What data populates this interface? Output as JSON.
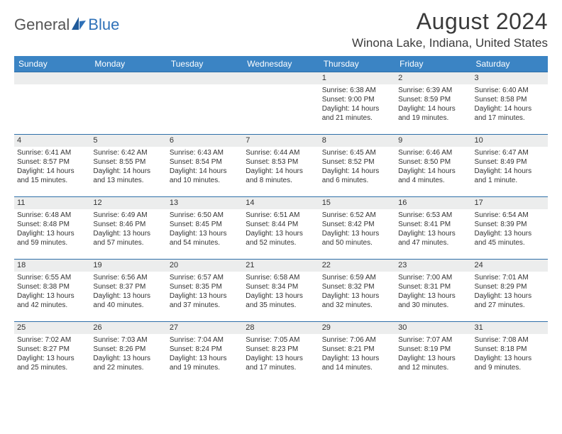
{
  "logo": {
    "general": "General",
    "blue": "Blue"
  },
  "title": "August 2024",
  "location": "Winona Lake, Indiana, United States",
  "headers": [
    "Sunday",
    "Monday",
    "Tuesday",
    "Wednesday",
    "Thursday",
    "Friday",
    "Saturday"
  ],
  "colors": {
    "header_bg": "#3b84c4",
    "daynum_bg": "#eceded",
    "rule": "#2f6fa8",
    "text": "#333333",
    "logo_blue": "#2f71b8"
  },
  "weeks": [
    [
      {
        "n": "",
        "sr": "",
        "ss": "",
        "dl1": "",
        "dl2": ""
      },
      {
        "n": "",
        "sr": "",
        "ss": "",
        "dl1": "",
        "dl2": ""
      },
      {
        "n": "",
        "sr": "",
        "ss": "",
        "dl1": "",
        "dl2": ""
      },
      {
        "n": "",
        "sr": "",
        "ss": "",
        "dl1": "",
        "dl2": ""
      },
      {
        "n": "1",
        "sr": "Sunrise: 6:38 AM",
        "ss": "Sunset: 9:00 PM",
        "dl1": "Daylight: 14 hours",
        "dl2": "and 21 minutes."
      },
      {
        "n": "2",
        "sr": "Sunrise: 6:39 AM",
        "ss": "Sunset: 8:59 PM",
        "dl1": "Daylight: 14 hours",
        "dl2": "and 19 minutes."
      },
      {
        "n": "3",
        "sr": "Sunrise: 6:40 AM",
        "ss": "Sunset: 8:58 PM",
        "dl1": "Daylight: 14 hours",
        "dl2": "and 17 minutes."
      }
    ],
    [
      {
        "n": "4",
        "sr": "Sunrise: 6:41 AM",
        "ss": "Sunset: 8:57 PM",
        "dl1": "Daylight: 14 hours",
        "dl2": "and 15 minutes."
      },
      {
        "n": "5",
        "sr": "Sunrise: 6:42 AM",
        "ss": "Sunset: 8:55 PM",
        "dl1": "Daylight: 14 hours",
        "dl2": "and 13 minutes."
      },
      {
        "n": "6",
        "sr": "Sunrise: 6:43 AM",
        "ss": "Sunset: 8:54 PM",
        "dl1": "Daylight: 14 hours",
        "dl2": "and 10 minutes."
      },
      {
        "n": "7",
        "sr": "Sunrise: 6:44 AM",
        "ss": "Sunset: 8:53 PM",
        "dl1": "Daylight: 14 hours",
        "dl2": "and 8 minutes."
      },
      {
        "n": "8",
        "sr": "Sunrise: 6:45 AM",
        "ss": "Sunset: 8:52 PM",
        "dl1": "Daylight: 14 hours",
        "dl2": "and 6 minutes."
      },
      {
        "n": "9",
        "sr": "Sunrise: 6:46 AM",
        "ss": "Sunset: 8:50 PM",
        "dl1": "Daylight: 14 hours",
        "dl2": "and 4 minutes."
      },
      {
        "n": "10",
        "sr": "Sunrise: 6:47 AM",
        "ss": "Sunset: 8:49 PM",
        "dl1": "Daylight: 14 hours",
        "dl2": "and 1 minute."
      }
    ],
    [
      {
        "n": "11",
        "sr": "Sunrise: 6:48 AM",
        "ss": "Sunset: 8:48 PM",
        "dl1": "Daylight: 13 hours",
        "dl2": "and 59 minutes."
      },
      {
        "n": "12",
        "sr": "Sunrise: 6:49 AM",
        "ss": "Sunset: 8:46 PM",
        "dl1": "Daylight: 13 hours",
        "dl2": "and 57 minutes."
      },
      {
        "n": "13",
        "sr": "Sunrise: 6:50 AM",
        "ss": "Sunset: 8:45 PM",
        "dl1": "Daylight: 13 hours",
        "dl2": "and 54 minutes."
      },
      {
        "n": "14",
        "sr": "Sunrise: 6:51 AM",
        "ss": "Sunset: 8:44 PM",
        "dl1": "Daylight: 13 hours",
        "dl2": "and 52 minutes."
      },
      {
        "n": "15",
        "sr": "Sunrise: 6:52 AM",
        "ss": "Sunset: 8:42 PM",
        "dl1": "Daylight: 13 hours",
        "dl2": "and 50 minutes."
      },
      {
        "n": "16",
        "sr": "Sunrise: 6:53 AM",
        "ss": "Sunset: 8:41 PM",
        "dl1": "Daylight: 13 hours",
        "dl2": "and 47 minutes."
      },
      {
        "n": "17",
        "sr": "Sunrise: 6:54 AM",
        "ss": "Sunset: 8:39 PM",
        "dl1": "Daylight: 13 hours",
        "dl2": "and 45 minutes."
      }
    ],
    [
      {
        "n": "18",
        "sr": "Sunrise: 6:55 AM",
        "ss": "Sunset: 8:38 PM",
        "dl1": "Daylight: 13 hours",
        "dl2": "and 42 minutes."
      },
      {
        "n": "19",
        "sr": "Sunrise: 6:56 AM",
        "ss": "Sunset: 8:37 PM",
        "dl1": "Daylight: 13 hours",
        "dl2": "and 40 minutes."
      },
      {
        "n": "20",
        "sr": "Sunrise: 6:57 AM",
        "ss": "Sunset: 8:35 PM",
        "dl1": "Daylight: 13 hours",
        "dl2": "and 37 minutes."
      },
      {
        "n": "21",
        "sr": "Sunrise: 6:58 AM",
        "ss": "Sunset: 8:34 PM",
        "dl1": "Daylight: 13 hours",
        "dl2": "and 35 minutes."
      },
      {
        "n": "22",
        "sr": "Sunrise: 6:59 AM",
        "ss": "Sunset: 8:32 PM",
        "dl1": "Daylight: 13 hours",
        "dl2": "and 32 minutes."
      },
      {
        "n": "23",
        "sr": "Sunrise: 7:00 AM",
        "ss": "Sunset: 8:31 PM",
        "dl1": "Daylight: 13 hours",
        "dl2": "and 30 minutes."
      },
      {
        "n": "24",
        "sr": "Sunrise: 7:01 AM",
        "ss": "Sunset: 8:29 PM",
        "dl1": "Daylight: 13 hours",
        "dl2": "and 27 minutes."
      }
    ],
    [
      {
        "n": "25",
        "sr": "Sunrise: 7:02 AM",
        "ss": "Sunset: 8:27 PM",
        "dl1": "Daylight: 13 hours",
        "dl2": "and 25 minutes."
      },
      {
        "n": "26",
        "sr": "Sunrise: 7:03 AM",
        "ss": "Sunset: 8:26 PM",
        "dl1": "Daylight: 13 hours",
        "dl2": "and 22 minutes."
      },
      {
        "n": "27",
        "sr": "Sunrise: 7:04 AM",
        "ss": "Sunset: 8:24 PM",
        "dl1": "Daylight: 13 hours",
        "dl2": "and 19 minutes."
      },
      {
        "n": "28",
        "sr": "Sunrise: 7:05 AM",
        "ss": "Sunset: 8:23 PM",
        "dl1": "Daylight: 13 hours",
        "dl2": "and 17 minutes."
      },
      {
        "n": "29",
        "sr": "Sunrise: 7:06 AM",
        "ss": "Sunset: 8:21 PM",
        "dl1": "Daylight: 13 hours",
        "dl2": "and 14 minutes."
      },
      {
        "n": "30",
        "sr": "Sunrise: 7:07 AM",
        "ss": "Sunset: 8:19 PM",
        "dl1": "Daylight: 13 hours",
        "dl2": "and 12 minutes."
      },
      {
        "n": "31",
        "sr": "Sunrise: 7:08 AM",
        "ss": "Sunset: 8:18 PM",
        "dl1": "Daylight: 13 hours",
        "dl2": "and 9 minutes."
      }
    ]
  ]
}
